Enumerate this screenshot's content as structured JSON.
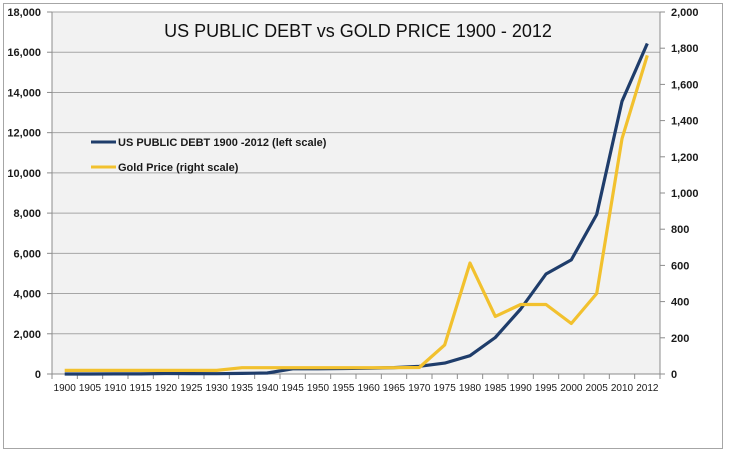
{
  "chart_data": {
    "type": "line",
    "title": "US PUBLIC DEBT vs GOLD PRICE 1900 - 2012",
    "xlabel": "",
    "ylabel": "",
    "categories": [
      "1900",
      "1905",
      "1910",
      "1915",
      "1920",
      "1925",
      "1930",
      "1935",
      "1940",
      "1945",
      "1950",
      "1955",
      "1960",
      "1965",
      "1970",
      "1975",
      "1980",
      "1985",
      "1990",
      "1995",
      "2000",
      "2005",
      "2010",
      "2012"
    ],
    "y_left": {
      "ylim": [
        0,
        18000
      ],
      "ticks": [
        0,
        2000,
        4000,
        6000,
        8000,
        10000,
        12000,
        14000,
        16000,
        18000
      ],
      "tick_labels": [
        "0",
        "2,000",
        "4,000",
        "6,000",
        "8,000",
        "10,000",
        "12,000",
        "14,000",
        "16,000",
        "18,000"
      ]
    },
    "y_right": {
      "ylim": [
        0,
        2000
      ],
      "ticks": [
        0,
        200,
        400,
        600,
        800,
        1000,
        1200,
        1400,
        1600,
        1800,
        2000
      ],
      "tick_labels": [
        "0",
        "200",
        "400",
        "600",
        "800",
        "1,000",
        "1,200",
        "1,400",
        "1,600",
        "1,800",
        "2,000"
      ]
    },
    "grid": true,
    "legend_position": "left",
    "series": [
      {
        "name": "US PUBLIC DEBT 1900 -2012 (left scale)",
        "axis": "left",
        "color": "#1f3d6b",
        "values": [
          2,
          2,
          3,
          3,
          24,
          20,
          16,
          29,
          51,
          260,
          257,
          274,
          290,
          317,
          381,
          542,
          909,
          1817,
          3233,
          4974,
          5674,
          7933,
          13562,
          16433
        ]
      },
      {
        "name": "Gold Price (right scale)",
        "axis": "right",
        "color": "#f2c12e",
        "values": [
          20,
          20,
          20,
          20,
          20,
          20,
          20,
          35,
          35,
          35,
          35,
          35,
          35,
          35,
          36,
          161,
          613,
          318,
          384,
          384,
          279,
          445,
          1300,
          1760
        ]
      }
    ]
  }
}
